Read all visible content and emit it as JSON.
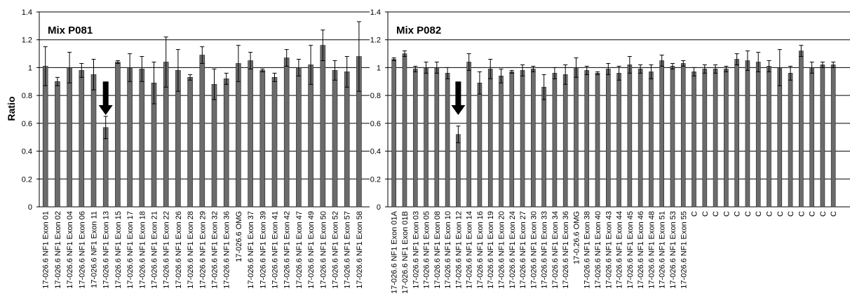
{
  "chart_data": [
    {
      "type": "bar",
      "title": "Mix P081",
      "ylabel": "Ratio",
      "ylim": [
        0,
        1.4
      ],
      "yticks": [
        "0",
        "0.2",
        "0.4",
        "0.6",
        "0.8",
        "1",
        "1.2",
        "1.4"
      ],
      "grid": true,
      "bar_color": "#6b6b6b",
      "categories": [
        "17-026.6 NF1 Exon 01",
        "17-026.6 NF1 Exon 02",
        "17-026.6 NF1 Exon 04",
        "17-026.6 NF1 Exon 06",
        "17-026.6 NF1 Exon 11",
        "17-026.6 NF1 Exon 13",
        "17-026.6 NF1 Exon 15",
        "17-026.6 NF1 Exon 17",
        "17-026.6 NF1 Exon 18",
        "17-026.6 NF1 Exon 21",
        "17-026.6 NF1 Exon 22",
        "17-026.6 NF1 Exon 26",
        "17-026.6 NF1 Exon 28",
        "17-026.6 NF1 Exon 29",
        "17-026.6 NF1 Exon 32",
        "17-026.6 NF1 Exon 36",
        "17-026.6 OMG",
        "17-026.6 NF1 Exon 37",
        "17-026.6 NF1 Exon 39",
        "17-026.6 NF1 Exon 41",
        "17-026.6 NF1 Exon 42",
        "17-026.6 NF1 Exon 47",
        "17-026.6 NF1 Exon 49",
        "17-026.6 NF1 Exon 50",
        "17-026.6 NF1 Exon 52",
        "17-026.6 NF1 Exon 57",
        "17-026.6 NF1 Exon 58"
      ],
      "values": [
        1.01,
        0.9,
        1.0,
        0.98,
        0.95,
        0.57,
        1.04,
        1.0,
        0.99,
        0.89,
        1.04,
        0.98,
        0.93,
        1.09,
        0.88,
        0.92,
        1.03,
        1.05,
        0.98,
        0.93,
        1.07,
        1.0,
        1.02,
        1.16,
        0.98,
        0.97,
        1.08
      ],
      "errors": [
        0.14,
        0.03,
        0.11,
        0.05,
        0.11,
        0.08,
        0.01,
        0.1,
        0.09,
        0.15,
        0.18,
        0.15,
        0.02,
        0.06,
        0.11,
        0.04,
        0.13,
        0.06,
        0.01,
        0.03,
        0.06,
        0.06,
        0.14,
        0.11,
        0.07,
        0.11,
        0.25
      ],
      "annotation": {
        "type": "arrow",
        "category_index": 5
      }
    },
    {
      "type": "bar",
      "title": "Mix P082",
      "ylim": [
        0,
        1.4
      ],
      "yticks": [
        "0",
        "0.2",
        "0.4",
        "0.6",
        "0.8",
        "1",
        "1.2",
        "1.4"
      ],
      "grid": true,
      "bar_color": "#6b6b6b",
      "categories": [
        "17-026.6 NF1 Exon 01A",
        "17-026.6 NF1 Exon 01B",
        "17-026.6 NF1 Exon 03",
        "17-026.6 NF1 Exon 05",
        "17-026.6 NF1 Exon 08",
        "17-026.6 NF1 Exon 10",
        "17-026.6 NF1 Exon 12",
        "17-026.6 NF1 Exon 14",
        "17-026.6 NF1 Exon 16",
        "17-026.6 NF1 Exon 19",
        "17-026.6 NF1 Exon 20",
        "17-026.6 NF1 Exon 24",
        "17-026.6 NF1 Exon 27",
        "17-026.6 NF1 Exon 30",
        "17-026.6 NF1 Exon 33",
        "17-026.6 NF1 Exon 34",
        "17-026.6 NF1 Exon 36",
        "17-0.26.6 OMG",
        "17-026.6 NF1 Exon 38",
        "17-026.6 NF1 Exon 40",
        "17-026.6 NF1 Exon 43",
        "17-026.6 NF1 Exon 44",
        "17-026.6 NF1 Exon 45",
        "17-026.6 NF1 Exon 46",
        "17-026.6 NF1 Exon 48",
        "17-026.6 NF1 Exon 51",
        "17-026.6 NF1 Exon 53",
        "17-026.6 NF1 Exon 55",
        "C",
        "C",
        "C",
        "C",
        "C",
        "C",
        "C",
        "C",
        "C",
        "C",
        "C",
        "C",
        "C",
        "C"
      ],
      "values": [
        1.06,
        1.1,
        0.99,
        1.0,
        1.0,
        0.96,
        0.52,
        1.04,
        0.89,
        0.99,
        0.94,
        0.97,
        0.98,
        0.99,
        0.86,
        0.96,
        0.95,
        1.0,
        0.98,
        0.96,
        0.99,
        0.96,
        1.02,
        0.99,
        0.97,
        1.05,
        1.01,
        1.03,
        0.97,
        0.99,
        0.99,
        0.99,
        1.06,
        1.05,
        1.04,
        1.01,
        1.0,
        0.96,
        1.12,
        1.0,
        1.02,
        1.02
      ],
      "errors": [
        0.01,
        0.02,
        0.02,
        0.04,
        0.04,
        0.04,
        0.06,
        0.06,
        0.08,
        0.07,
        0.05,
        0.01,
        0.04,
        0.02,
        0.09,
        0.04,
        0.07,
        0.07,
        0.03,
        0.01,
        0.04,
        0.05,
        0.06,
        0.03,
        0.05,
        0.04,
        0.02,
        0.02,
        0.03,
        0.03,
        0.03,
        0.02,
        0.04,
        0.07,
        0.07,
        0.04,
        0.13,
        0.05,
        0.04,
        0.04,
        0.02,
        0.02
      ],
      "annotation": {
        "type": "arrow",
        "category_index": 6
      }
    }
  ]
}
